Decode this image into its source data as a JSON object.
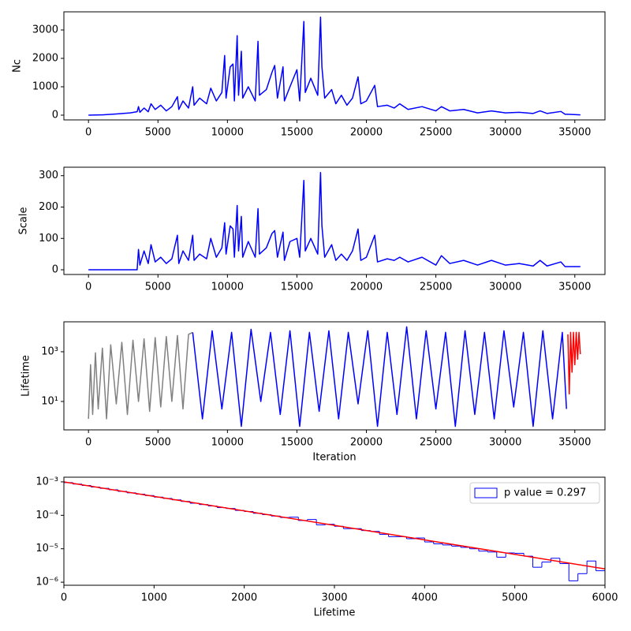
{
  "chart_data": [
    {
      "type": "line",
      "ylabel": "Nc",
      "xlim": [
        -1770,
        37170
      ],
      "ylim": [
        -167,
        3639
      ],
      "xticks": [
        0,
        5000,
        10000,
        15000,
        20000,
        25000,
        30000,
        35000
      ],
      "yticks": [
        0,
        1000,
        2000,
        3000
      ],
      "x": [
        0,
        1000,
        2000,
        3000,
        3500,
        3600,
        3700,
        4000,
        4300,
        4500,
        4800,
        5200,
        5600,
        6000,
        6400,
        6500,
        6800,
        7200,
        7500,
        7600,
        8000,
        8500,
        8800,
        9200,
        9600,
        9800,
        9900,
        10200,
        10400,
        10500,
        10700,
        10800,
        11000,
        11100,
        11500,
        12000,
        12200,
        12300,
        12800,
        13200,
        13400,
        13600,
        14000,
        14100,
        14500,
        15000,
        15200,
        15500,
        15600,
        16000,
        16500,
        16700,
        16800,
        17000,
        17500,
        17800,
        18200,
        18600,
        19000,
        19400,
        19600,
        20000,
        20600,
        20800,
        21500,
        22000,
        22400,
        23000,
        24000,
        25000,
        25400,
        26000,
        27000,
        28000,
        29000,
        30000,
        31000,
        32000,
        32500,
        33000,
        34000,
        34300,
        34500,
        35400
      ],
      "series": [
        {
          "color": "blue",
          "values": [
            0,
            10,
            40,
            80,
            120,
            300,
            100,
            250,
            120,
            400,
            200,
            350,
            150,
            300,
            650,
            200,
            500,
            250,
            1000,
            350,
            600,
            400,
            950,
            500,
            800,
            2100,
            600,
            1700,
            1800,
            500,
            2800,
            700,
            2250,
            600,
            1000,
            500,
            2600,
            700,
            900,
            1500,
            1750,
            600,
            1700,
            500,
            1000,
            1600,
            500,
            3300,
            800,
            1300,
            700,
            3450,
            1700,
            600,
            900,
            400,
            700,
            350,
            600,
            1350,
            400,
            500,
            1050,
            300,
            350,
            250,
            400,
            200,
            300,
            150,
            300,
            150,
            200,
            80,
            150,
            80,
            100,
            60,
            150,
            60,
            130,
            30,
            30,
            10
          ]
        }
      ]
    },
    {
      "type": "line",
      "ylabel": "Scale",
      "xlim": [
        -1770,
        37170
      ],
      "ylim": [
        -15,
        327
      ],
      "xticks": [
        0,
        5000,
        10000,
        15000,
        20000,
        25000,
        30000,
        35000
      ],
      "yticks": [
        0,
        100,
        200,
        300
      ],
      "x": [
        0,
        1000,
        2000,
        3000,
        3500,
        3600,
        3700,
        4000,
        4300,
        4500,
        4800,
        5200,
        5600,
        6000,
        6400,
        6500,
        6800,
        7200,
        7500,
        7600,
        8000,
        8500,
        8800,
        9200,
        9600,
        9800,
        9900,
        10200,
        10400,
        10500,
        10700,
        10800,
        11000,
        11100,
        11500,
        12000,
        12200,
        12300,
        12800,
        13200,
        13400,
        13600,
        14000,
        14100,
        14500,
        15000,
        15200,
        15500,
        15600,
        16000,
        16500,
        16700,
        16800,
        17000,
        17500,
        17800,
        18200,
        18600,
        19000,
        19400,
        19600,
        20000,
        20600,
        20800,
        21500,
        22000,
        22400,
        23000,
        24000,
        25000,
        25400,
        26000,
        27000,
        28000,
        29000,
        30000,
        31000,
        32000,
        32500,
        33000,
        34000,
        34300,
        34500,
        35400
      ],
      "series": [
        {
          "color": "blue",
          "values": [
            0,
            0,
            0,
            0,
            0,
            65,
            15,
            60,
            20,
            80,
            25,
            40,
            20,
            35,
            110,
            20,
            60,
            30,
            110,
            30,
            50,
            35,
            100,
            40,
            70,
            150,
            50,
            140,
            130,
            40,
            205,
            60,
            170,
            40,
            90,
            40,
            195,
            50,
            70,
            115,
            125,
            40,
            120,
            30,
            90,
            100,
            40,
            285,
            60,
            100,
            50,
            310,
            140,
            40,
            80,
            30,
            50,
            30,
            60,
            130,
            30,
            40,
            110,
            25,
            35,
            30,
            40,
            25,
            40,
            15,
            45,
            20,
            30,
            15,
            30,
            15,
            20,
            12,
            30,
            12,
            25,
            10,
            10,
            10
          ]
        }
      ]
    },
    {
      "type": "line",
      "ylabel": "Lifetime",
      "xlabel": "Iteration",
      "yscale": "log",
      "xlim": [
        -1770,
        37170
      ],
      "ylim": [
        0.72,
        16000
      ],
      "xticks": [
        0,
        5000,
        10000,
        15000,
        20000,
        25000,
        30000,
        35000
      ],
      "yticks": [
        {
          "value": 10,
          "label": "10¹"
        },
        {
          "value": 1000,
          "label": "10³"
        }
      ],
      "series": [
        {
          "color": "gray",
          "x": [
            0,
            150,
            300,
            500,
            700,
            1000,
            1300,
            1600,
            2000,
            2400,
            2800,
            3200,
            3600,
            4000,
            4400,
            4800,
            5200,
            5600,
            6000,
            6400,
            6800,
            7200,
            7500
          ],
          "values": [
            2,
            300,
            3,
            900,
            5,
            1400,
            2,
            1900,
            8,
            2400,
            3,
            2900,
            10,
            3300,
            4,
            3700,
            6,
            4100,
            10,
            4500,
            5,
            5000,
            6000
          ]
        },
        {
          "color": "blue",
          "x": [
            7500,
            8200,
            8900,
            9600,
            10300,
            11000,
            11700,
            12400,
            13100,
            13800,
            14500,
            15200,
            15900,
            16600,
            17300,
            18000,
            18700,
            19400,
            20100,
            20800,
            21500,
            22200,
            22900,
            23600,
            24300,
            25000,
            25700,
            26400,
            27100,
            27800,
            28500,
            29200,
            29900,
            30600,
            31300,
            32000,
            32700,
            33400,
            34100,
            34400
          ],
          "values": [
            6000,
            2,
            7000,
            5,
            6000,
            1,
            8000,
            10,
            6000,
            3,
            7000,
            1,
            6000,
            4,
            7000,
            2,
            6000,
            8,
            7000,
            1,
            6000,
            3,
            10000,
            2,
            7000,
            5,
            6000,
            1,
            7000,
            3,
            6000,
            2,
            7000,
            6,
            6000,
            1,
            7000,
            2,
            6000,
            5
          ]
        },
        {
          "color": "red",
          "x": [
            34500,
            34600,
            34700,
            34800,
            34900,
            35000,
            35100,
            35200,
            35300,
            35400
          ],
          "values": [
            5000,
            20,
            6000,
            150,
            6000,
            300,
            6000,
            500,
            6000,
            800
          ]
        }
      ]
    },
    {
      "type": "histogram",
      "xlabel": "Lifetime",
      "yscale": "log",
      "xlim": [
        0,
        6000
      ],
      "ylim": [
        8.1e-07,
        0.00138
      ],
      "xticks": [
        0,
        1000,
        2000,
        3000,
        4000,
        5000,
        6000
      ],
      "yticks": [
        {
          "value": 1e-06,
          "label": "10⁻⁶"
        },
        {
          "value": 1e-05,
          "label": "10⁻⁵"
        },
        {
          "value": 0.0001,
          "label": "10⁻⁴"
        },
        {
          "value": 0.001,
          "label": "10⁻³"
        }
      ],
      "legend": "upper right",
      "bins": [
        0,
        100,
        200,
        300,
        400,
        500,
        600,
        700,
        800,
        900,
        1000,
        1100,
        1200,
        1300,
        1400,
        1500,
        1600,
        1700,
        1800,
        1900,
        2000,
        2100,
        2200,
        2300,
        2400,
        2500,
        2600,
        2700,
        2800,
        2900,
        3000,
        3100,
        3200,
        3300,
        3400,
        3500,
        3600,
        3700,
        3800,
        3900,
        4000,
        4100,
        4200,
        4300,
        4400,
        4500,
        4600,
        4700,
        4800,
        4900,
        5000,
        5100,
        5200,
        5300,
        5400,
        5500,
        5600,
        5700,
        5800,
        5900,
        6000
      ],
      "series": [
        {
          "name": "p value = 0.297",
          "color": "blue",
          "values": [
            0.00095,
            0.00086,
            0.00078,
            0.0007,
            0.00064,
            0.00058,
            0.00052,
            0.00047,
            0.00043,
            0.00039,
            0.00035,
            0.00032,
            0.00029,
            0.00026,
            0.00023,
            0.00021,
            0.00019,
            0.00017,
            0.00016,
            0.00014,
            0.00013,
            0.000115,
            0.000105,
            9.5e-05,
            8.6e-05,
            8.8e-05,
            7e-05,
            7.5e-05,
            5.2e-05,
            5.4e-05,
            4.7e-05,
            4e-05,
            4e-05,
            3.5e-05,
            3.3e-05,
            2.7e-05,
            2.3e-05,
            2.3e-05,
            2e-05,
            2.1e-05,
            1.6e-05,
            1.4e-05,
            1.3e-05,
            1.2e-05,
            1.1e-05,
            1e-05,
            8.5e-06,
            8e-06,
            5.6e-06,
            7.5e-06,
            7.3e-06,
            6e-06,
            2.8e-06,
            4e-06,
            5.2e-06,
            3.6e-06,
            1.1e-06,
            1.8e-06,
            4.3e-06,
            2.2e-06
          ]
        }
      ],
      "fit": {
        "color": "red",
        "x": [
          0,
          6000
        ],
        "values": [
          0.001,
          2.5e-06
        ]
      }
    }
  ]
}
